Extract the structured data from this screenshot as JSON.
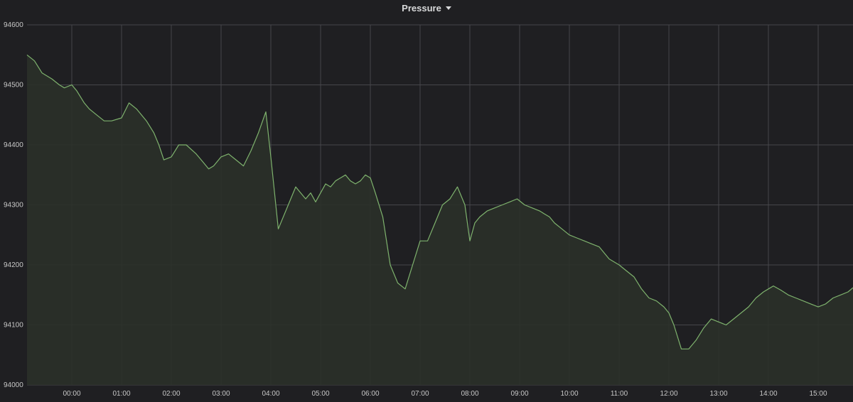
{
  "panel": {
    "title": "Pressure",
    "menu_icon": "caret-down-icon"
  },
  "colors": {
    "background": "#1f1f22",
    "grid": "#46464a",
    "series_line": "#7eb26d",
    "series_fill": "#2a3029",
    "tick_text": "#c7c7c7",
    "title_text": "#d8d9da"
  },
  "chart_data": {
    "type": "area",
    "title": "Pressure",
    "xlabel": "",
    "ylabel": "",
    "grid": true,
    "legend": "none",
    "ylim": [
      94000,
      94600
    ],
    "xlim": [
      -0.9,
      15.7
    ],
    "x_unit": "hour of day",
    "x_tick_values": [
      0,
      1,
      2,
      3,
      4,
      5,
      6,
      7,
      8,
      9,
      10,
      11,
      12,
      13,
      14,
      15
    ],
    "x_ticks": [
      "00:00",
      "01:00",
      "02:00",
      "03:00",
      "04:00",
      "05:00",
      "06:00",
      "07:00",
      "08:00",
      "09:00",
      "10:00",
      "11:00",
      "12:00",
      "13:00",
      "14:00",
      "15:00"
    ],
    "y_ticks": [
      "94000",
      "94100",
      "94200",
      "94300",
      "94400",
      "94500",
      "94600"
    ],
    "y_tick_values": [
      94000,
      94100,
      94200,
      94300,
      94400,
      94500,
      94600
    ],
    "series": [
      {
        "x": [
          -0.9,
          -0.75,
          -0.6,
          -0.4,
          -0.25,
          -0.15,
          0,
          0.1,
          0.25,
          0.35,
          0.5,
          0.65,
          0.8,
          1,
          1.15,
          1.3,
          1.5,
          1.65,
          1.75,
          1.85,
          2,
          2.15,
          2.3,
          2.5,
          2.65,
          2.75,
          2.85,
          3,
          3.15,
          3.3,
          3.45,
          3.6,
          3.75,
          3.9,
          4,
          4.15,
          4.35,
          4.5,
          4.6,
          4.7,
          4.8,
          4.9,
          5,
          5.1,
          5.2,
          5.3,
          5.4,
          5.5,
          5.6,
          5.7,
          5.8,
          5.9,
          6,
          6.1,
          6.25,
          6.4,
          6.55,
          6.7,
          6.85,
          7,
          7.15,
          7.3,
          7.45,
          7.6,
          7.75,
          7.9,
          8,
          8.1,
          8.2,
          8.35,
          8.5,
          8.65,
          8.8,
          8.95,
          9.1,
          9.25,
          9.4,
          9.5,
          9.6,
          9.7,
          9.85,
          10,
          10.15,
          10.3,
          10.45,
          10.6,
          10.8,
          11,
          11.15,
          11.3,
          11.45,
          11.6,
          11.75,
          11.9,
          12,
          12.1,
          12.25,
          12.4,
          12.55,
          12.7,
          12.85,
          13,
          13.15,
          13.3,
          13.45,
          13.6,
          13.75,
          13.9,
          14,
          14.1,
          14.25,
          14.4,
          14.55,
          14.7,
          14.85,
          15,
          15.15,
          15.3,
          15.45,
          15.6,
          15.7
        ],
        "values": [
          94550,
          94540,
          94520,
          94510,
          94500,
          94495,
          94500,
          94490,
          94470,
          94460,
          94450,
          94440,
          94440,
          94445,
          94470,
          94460,
          94440,
          94420,
          94400,
          94375,
          94380,
          94400,
          94400,
          94385,
          94370,
          94360,
          94365,
          94380,
          94385,
          94375,
          94365,
          94390,
          94420,
          94455,
          94380,
          94260,
          94300,
          94330,
          94320,
          94310,
          94320,
          94305,
          94320,
          94335,
          94330,
          94340,
          94345,
          94350,
          94340,
          94335,
          94340,
          94350,
          94345,
          94320,
          94280,
          94200,
          94170,
          94160,
          94200,
          94240,
          94240,
          94270,
          94300,
          94310,
          94330,
          94300,
          94240,
          94270,
          94280,
          94290,
          94295,
          94300,
          94305,
          94310,
          94300,
          94295,
          94290,
          94285,
          94280,
          94270,
          94260,
          94250,
          94245,
          94240,
          94235,
          94230,
          94210,
          94200,
          94190,
          94180,
          94160,
          94145,
          94140,
          94130,
          94120,
          94100,
          94060,
          94060,
          94075,
          94095,
          94110,
          94105,
          94100,
          94110,
          94120,
          94130,
          94145,
          94155,
          94160,
          94165,
          94158,
          94150,
          94145,
          94140,
          94135,
          94130,
          94135,
          94145,
          94150,
          94155,
          94162
        ]
      }
    ]
  }
}
